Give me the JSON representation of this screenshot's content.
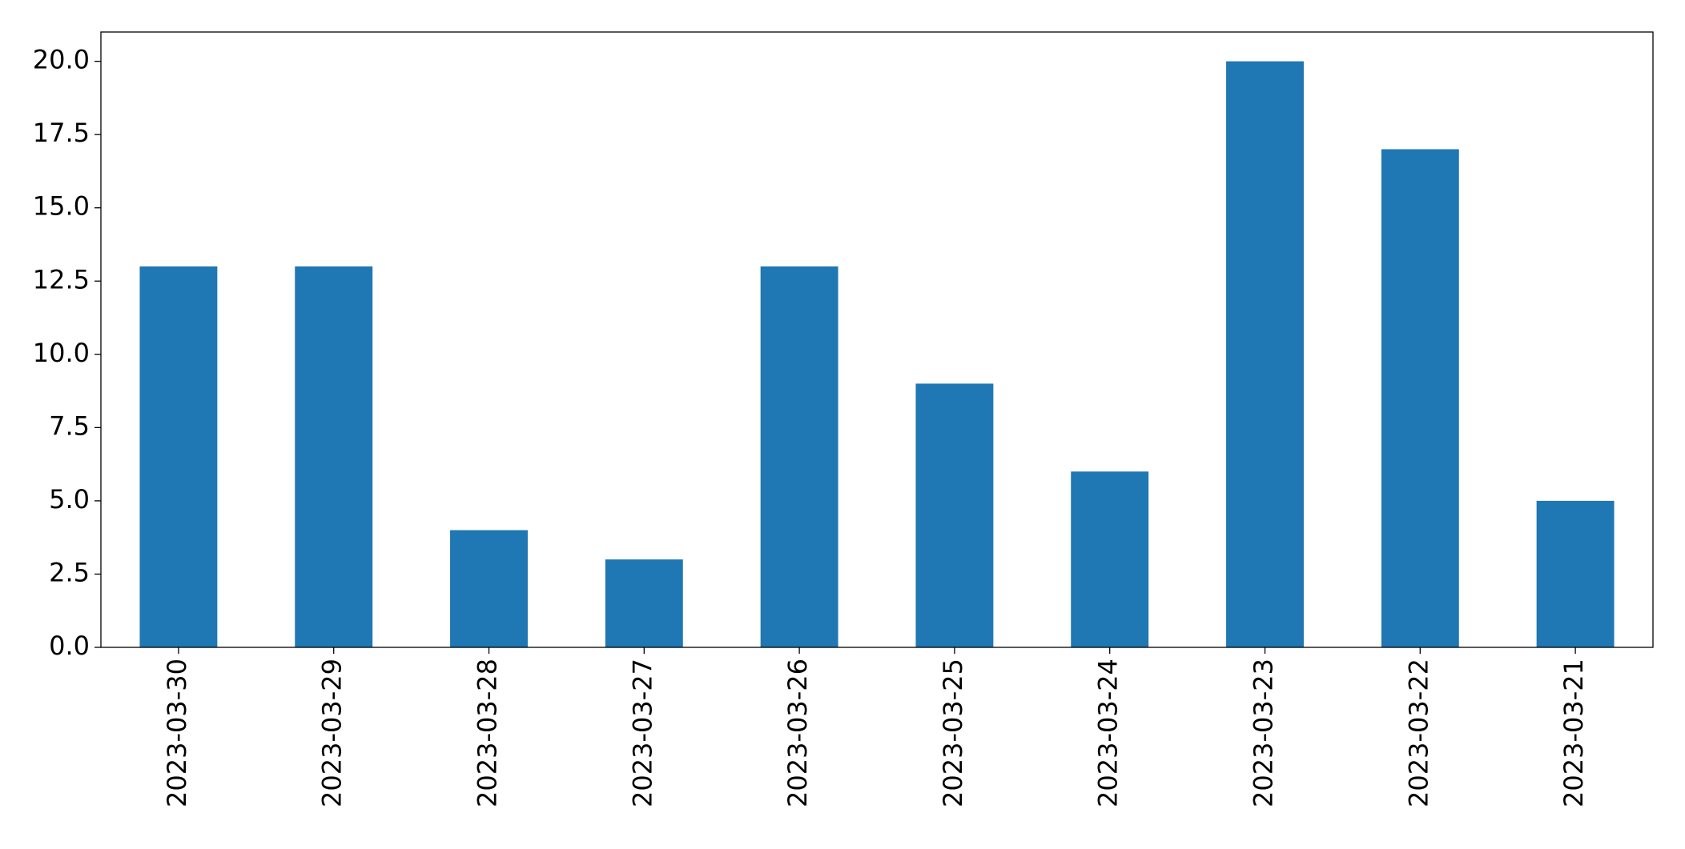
{
  "chart_data": {
    "type": "bar",
    "categories": [
      "2023-03-30",
      "2023-03-29",
      "2023-03-28",
      "2023-03-27",
      "2023-03-26",
      "2023-03-25",
      "2023-03-24",
      "2023-03-23",
      "2023-03-22",
      "2023-03-21"
    ],
    "values": [
      13,
      13,
      4,
      3,
      13,
      9,
      6,
      20,
      17,
      5
    ],
    "color": "#1f77b4",
    "ylim": [
      0,
      21
    ],
    "yticks": [
      {
        "value": 0,
        "label": "0.0"
      },
      2.5,
      {
        "value": 5,
        "label": "5.0"
      },
      7.5,
      {
        "value": 10,
        "label": "10.0"
      },
      12.5,
      {
        "value": 15,
        "label": "15.0"
      },
      17.5,
      {
        "value": 20,
        "label": "20.0"
      }
    ],
    "grid": false
  }
}
